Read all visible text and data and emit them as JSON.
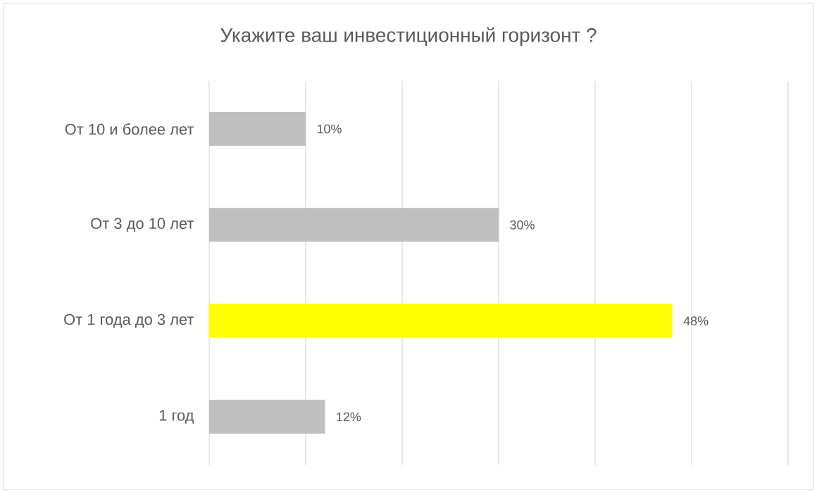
{
  "chart_data": {
    "type": "bar",
    "orientation": "horizontal",
    "title": "Укажите ваш инвестиционный горизонт ?",
    "categories": [
      "От 10 и более лет",
      "От 3 до 10 лет",
      "От 1 года до 3 лет",
      "1 год"
    ],
    "values": [
      10,
      30,
      48,
      12
    ],
    "value_labels": [
      "10%",
      "30%",
      "48%",
      "12%"
    ],
    "colors": [
      "#bfbfbf",
      "#bfbfbf",
      "#ffff00",
      "#bfbfbf"
    ],
    "xlim": [
      0,
      60
    ],
    "xticks": [
      {
        "value": 0,
        "label": null
      },
      {
        "value": 10,
        "label": null
      },
      {
        "value": 20,
        "label": null
      },
      {
        "value": 30,
        "label": null
      },
      {
        "value": 40,
        "label": null
      },
      {
        "value": 50,
        "label": null
      },
      {
        "value": 60,
        "label": null
      }
    ],
    "grid": "x",
    "tick_labels": "y"
  }
}
